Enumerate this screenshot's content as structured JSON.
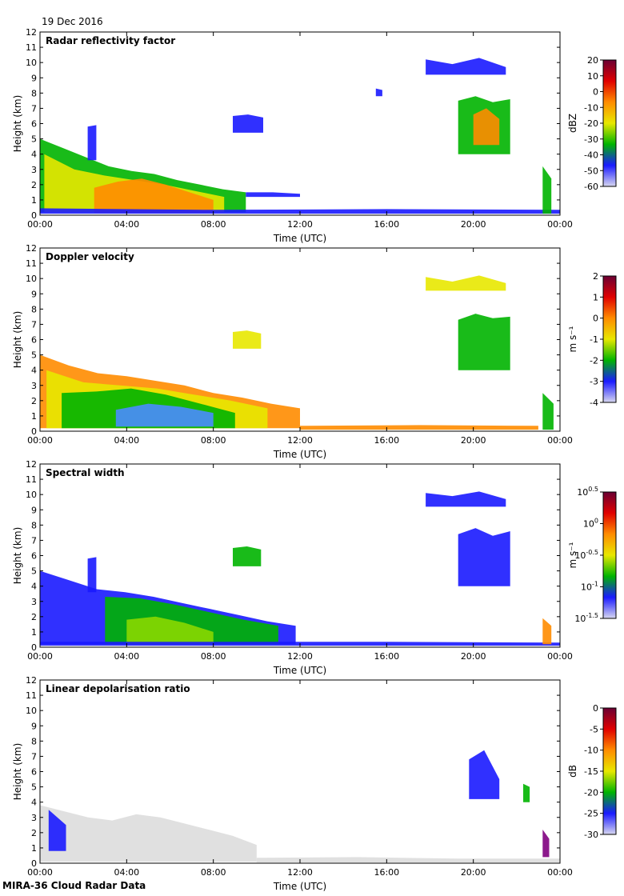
{
  "date": "19 Dec 2016",
  "footer": "MIRA-36 Cloud Radar Data",
  "colors": {
    "blue": "#1a1aff",
    "lightblue": "#4a8cff",
    "cyan": "#00bcd4",
    "green": "#00b400",
    "lime": "#8ad800",
    "yellow": "#e8e800",
    "orange": "#ff8c00",
    "red": "#e00000",
    "darkred": "#7a0000",
    "purple": "#800080",
    "lightgrey": "#dddddd"
  },
  "chart_data": [
    {
      "type": "heatmap",
      "title": "Radar reflectivity factor",
      "xlabel": "Time (UTC)",
      "ylabel": "Height (km)",
      "xlim": [
        0,
        24
      ],
      "ylim": [
        0,
        12
      ],
      "xticks": [
        "00:00",
        "04:00",
        "08:00",
        "12:00",
        "16:00",
        "20:00",
        "00:00"
      ],
      "yticks": [
        "0",
        "1",
        "2",
        "3",
        "4",
        "5",
        "6",
        "7",
        "8",
        "9",
        "10",
        "11",
        "12"
      ],
      "colorbar": {
        "label": "dBZ",
        "ticks": [
          "20",
          "10",
          "0",
          "-10",
          "-20",
          "-30",
          "-40",
          "-50",
          "-60"
        ],
        "stops": [
          "#6a0033",
          "#e00000",
          "#ff8c00",
          "#e8e800",
          "#00b400",
          "#1a1aff",
          "#d8d8f0"
        ]
      },
      "regions": [
        {
          "x": [
            0,
            9.5
          ],
          "top": [
            5.0,
            4.4,
            3.8,
            3.2,
            2.9,
            2.7,
            2.3,
            2.0,
            1.7,
            1.5
          ],
          "base": 0.2,
          "color": "green"
        },
        {
          "x": [
            0.2,
            8.5
          ],
          "top": [
            4.0,
            3.0,
            2.6,
            2.3,
            2.0,
            1.6,
            1.2
          ],
          "base": 0.2,
          "color": "yellow"
        },
        {
          "x": [
            2.5,
            8.0
          ],
          "top": [
            1.8,
            2.2,
            2.4,
            2.0,
            1.5,
            1.0
          ],
          "base": 0.15,
          "color": "orange"
        },
        {
          "x": [
            9.5,
            12.0
          ],
          "top": [
            1.5,
            1.5,
            1.4
          ],
          "base": 1.2,
          "color": "blue"
        },
        {
          "x": [
            0,
            24
          ],
          "top": [
            0.45,
            0.35,
            0.4,
            0.35
          ],
          "base": 0.1,
          "color": "blue"
        },
        {
          "x": [
            8.9,
            10.3
          ],
          "top": [
            6.5,
            6.6,
            6.4
          ],
          "base": 5.4,
          "color": "blue"
        },
        {
          "x": [
            2.2,
            2.6
          ],
          "top": [
            5.8,
            5.9
          ],
          "base": 3.6,
          "color": "blue"
        },
        {
          "x": [
            19.3,
            21.7
          ],
          "top": [
            7.5,
            7.8,
            7.4,
            7.6
          ],
          "base": 4.0,
          "color": "green"
        },
        {
          "x": [
            20.0,
            21.2
          ],
          "top": [
            6.6,
            7.0,
            6.3
          ],
          "base": 4.6,
          "color": "orange"
        },
        {
          "x": [
            17.8,
            21.5
          ],
          "top": [
            10.2,
            9.9,
            10.3,
            9.7
          ],
          "base": 9.2,
          "color": "blue"
        },
        {
          "x": [
            15.5,
            15.8
          ],
          "top": [
            8.3,
            8.2
          ],
          "base": 7.8,
          "color": "blue"
        },
        {
          "x": [
            23.2,
            23.6
          ],
          "top": [
            3.2,
            2.4
          ],
          "base": 0.1,
          "color": "green"
        }
      ]
    },
    {
      "type": "heatmap",
      "title": "Doppler velocity",
      "xlabel": "Time (UTC)",
      "ylabel": "Height (km)",
      "xlim": [
        0,
        24
      ],
      "ylim": [
        0,
        12
      ],
      "xticks": [
        "00:00",
        "04:00",
        "08:00",
        "12:00",
        "16:00",
        "20:00",
        "00:00"
      ],
      "yticks": [
        "0",
        "1",
        "2",
        "3",
        "4",
        "5",
        "6",
        "7",
        "8",
        "9",
        "10",
        "11",
        "12"
      ],
      "colorbar": {
        "label": "m s⁻¹",
        "ticks": [
          "2",
          "1",
          "0",
          "-1",
          "-2",
          "-3",
          "-4"
        ],
        "stops": [
          "#6a0033",
          "#e00000",
          "#ff8c00",
          "#e8e800",
          "#00b400",
          "#1a1aff",
          "#d8d8f0"
        ]
      },
      "regions": [
        {
          "x": [
            0,
            12.0
          ],
          "top": [
            5.0,
            4.3,
            3.8,
            3.6,
            3.3,
            3.0,
            2.5,
            2.2,
            1.8,
            1.5
          ],
          "base": 0.2,
          "color": "orange"
        },
        {
          "x": [
            0.3,
            10.5
          ],
          "top": [
            4.0,
            3.2,
            3.0,
            2.8,
            2.4,
            2.0,
            1.5
          ],
          "base": 0.2,
          "color": "yellow"
        },
        {
          "x": [
            1.0,
            9.0
          ],
          "top": [
            2.5,
            2.6,
            2.8,
            2.4,
            1.8,
            1.2
          ],
          "base": 0.2,
          "color": "green"
        },
        {
          "x": [
            3.5,
            8.0
          ],
          "top": [
            1.4,
            1.8,
            1.6,
            1.2
          ],
          "base": 0.3,
          "color": "lightblue"
        },
        {
          "x": [
            12.0,
            23.0
          ],
          "top": [
            0.35,
            0.4,
            0.35
          ],
          "base": 0.1,
          "color": "orange"
        },
        {
          "x": [
            8.9,
            10.2
          ],
          "top": [
            6.5,
            6.6,
            6.4
          ],
          "base": 5.4,
          "color": "yellow"
        },
        {
          "x": [
            19.3,
            21.7
          ],
          "top": [
            7.3,
            7.7,
            7.4,
            7.5
          ],
          "base": 4.0,
          "color": "green"
        },
        {
          "x": [
            17.8,
            21.5
          ],
          "top": [
            10.1,
            9.8,
            10.2,
            9.7
          ],
          "base": 9.2,
          "color": "yellow"
        },
        {
          "x": [
            23.2,
            23.7
          ],
          "top": [
            2.5,
            1.8
          ],
          "base": 0.1,
          "color": "green"
        }
      ]
    },
    {
      "type": "heatmap",
      "title": "Spectral width",
      "xlabel": "Time (UTC)",
      "ylabel": "Height (km)",
      "xlim": [
        0,
        24
      ],
      "ylim": [
        0,
        12
      ],
      "xticks": [
        "00:00",
        "04:00",
        "08:00",
        "12:00",
        "16:00",
        "20:00",
        "00:00"
      ],
      "yticks": [
        "0",
        "1",
        "2",
        "3",
        "4",
        "5",
        "6",
        "7",
        "8",
        "9",
        "10",
        "11",
        "12"
      ],
      "colorbar": {
        "label": "m s⁻¹",
        "ticks": [
          "10^0.5",
          "10^0",
          "10^-0.5",
          "10^-1",
          "10^-1.5"
        ],
        "stops": [
          "#6a0033",
          "#e00000",
          "#ff8c00",
          "#e8e800",
          "#00b400",
          "#1a1aff",
          "#d8d8f0"
        ]
      },
      "regions": [
        {
          "x": [
            0,
            11.8
          ],
          "top": [
            5.0,
            4.4,
            3.8,
            3.6,
            3.3,
            2.9,
            2.5,
            2.1,
            1.7,
            1.4
          ],
          "base": 0.2,
          "color": "blue"
        },
        {
          "x": [
            3.0,
            11.0
          ],
          "top": [
            3.3,
            3.2,
            2.8,
            2.3,
            1.8,
            1.4
          ],
          "base": 0.2,
          "color": "green"
        },
        {
          "x": [
            4.0,
            8.0
          ],
          "top": [
            1.8,
            2.0,
            1.6,
            1.0
          ],
          "base": 0.2,
          "color": "lime"
        },
        {
          "x": [
            0,
            24
          ],
          "top": [
            0.35,
            0.35,
            0.35,
            0.3
          ],
          "base": 0.1,
          "color": "blue"
        },
        {
          "x": [
            8.9,
            10.2
          ],
          "top": [
            6.5,
            6.6,
            6.4
          ],
          "base": 5.3,
          "color": "green"
        },
        {
          "x": [
            2.2,
            2.6
          ],
          "top": [
            5.8,
            5.9
          ],
          "base": 3.6,
          "color": "blue"
        },
        {
          "x": [
            19.3,
            21.7
          ],
          "top": [
            7.4,
            7.8,
            7.3,
            7.6
          ],
          "base": 4.0,
          "color": "blue"
        },
        {
          "x": [
            17.8,
            21.5
          ],
          "top": [
            10.1,
            9.9,
            10.2,
            9.7
          ],
          "base": 9.2,
          "color": "blue"
        },
        {
          "x": [
            23.2,
            23.6
          ],
          "top": [
            1.9,
            1.4
          ],
          "base": 0.2,
          "color": "orange"
        }
      ]
    },
    {
      "type": "heatmap",
      "title": "Linear depolarisation ratio",
      "xlabel": "Time (UTC)",
      "ylabel": "Height (km)",
      "xlim": [
        0,
        24
      ],
      "ylim": [
        0,
        12
      ],
      "xticks": [
        "00:00",
        "04:00",
        "08:00",
        "12:00",
        "16:00",
        "20:00",
        "00:00"
      ],
      "yticks": [
        "0",
        "1",
        "2",
        "3",
        "4",
        "5",
        "6",
        "7",
        "8",
        "9",
        "10",
        "11",
        "12"
      ],
      "colorbar": {
        "label": "dB",
        "ticks": [
          "0",
          "-5",
          "-10",
          "-15",
          "-20",
          "-25",
          "-30"
        ],
        "stops": [
          "#6a0033",
          "#e00000",
          "#ff8c00",
          "#e8e800",
          "#00b400",
          "#1a1aff",
          "#d8d8f0"
        ]
      },
      "regions": [
        {
          "x": [
            0,
            10.0
          ],
          "top": [
            3.8,
            3.4,
            3.0,
            2.8,
            3.2,
            3.0,
            2.6,
            2.2,
            1.8,
            1.2
          ],
          "base": 0.1,
          "color": "lightgrey"
        },
        {
          "x": [
            10.0,
            24
          ],
          "top": [
            0.35,
            0.4,
            0.3,
            0.3
          ],
          "base": 0.05,
          "color": "lightgrey"
        },
        {
          "x": [
            0.4,
            1.2
          ],
          "top": [
            3.5,
            2.5
          ],
          "base": 0.8,
          "color": "blue"
        },
        {
          "x": [
            19.8,
            21.2
          ],
          "top": [
            6.8,
            7.4,
            5.5
          ],
          "base": 4.2,
          "color": "blue"
        },
        {
          "x": [
            22.3,
            22.6
          ],
          "top": [
            5.2,
            5.0
          ],
          "base": 4.0,
          "color": "green"
        },
        {
          "x": [
            23.2,
            23.5
          ],
          "top": [
            2.2,
            1.6
          ],
          "base": 0.4,
          "color": "purple"
        }
      ]
    }
  ]
}
